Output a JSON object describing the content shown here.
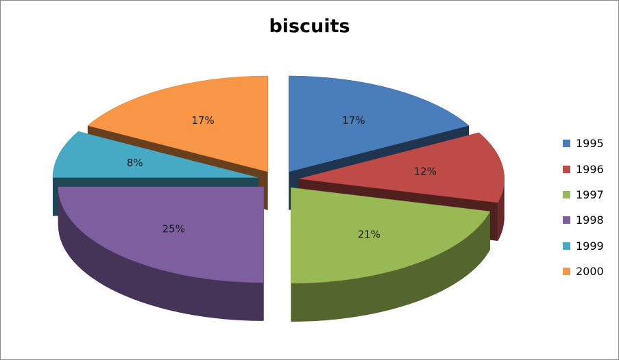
{
  "chart_data": {
    "type": "pie",
    "title": "biscuits",
    "categories": [
      "1995",
      "1996",
      "1997",
      "1998",
      "1999",
      "2000"
    ],
    "values": [
      17,
      12,
      21,
      25,
      8,
      17
    ],
    "labels": [
      "17%",
      "12%",
      "21%",
      "25%",
      "8%",
      "17%"
    ],
    "colors": [
      "#4a7ebb",
      "#be4b48",
      "#98b954",
      "#7d5fa0",
      "#46aac5",
      "#f79646"
    ],
    "exploded": true,
    "three_d": true,
    "legend_position": "right"
  }
}
